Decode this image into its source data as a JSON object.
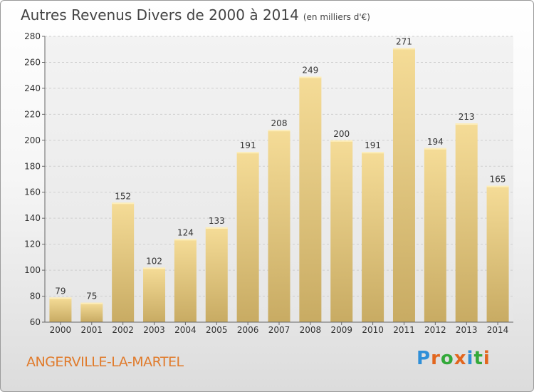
{
  "header": {
    "title": "Autres Revenus Divers de 2000 à 2014",
    "subtitle": "(en milliers d'€)"
  },
  "footer": {
    "place": "ANGERVILLE-LA-MARTEL",
    "brand": "Proxiti",
    "brand_letters": [
      "P",
      "r",
      "o",
      "x",
      "i",
      "t",
      "i"
    ],
    "brand_colors": [
      "#2f8fd8",
      "#e2661e",
      "#33a93a",
      "#e2661e",
      "#2f8fd8",
      "#33a93a",
      "#e2661e"
    ]
  },
  "chart_data": {
    "type": "bar",
    "title": "Autres Revenus Divers de 2000 à 2014",
    "subtitle": "(en milliers d'€)",
    "categories": [
      "2000",
      "2001",
      "2002",
      "2003",
      "2004",
      "2005",
      "2006",
      "2007",
      "2008",
      "2009",
      "2010",
      "2011",
      "2012",
      "2013",
      "2014"
    ],
    "values": [
      79,
      75,
      152,
      102,
      124,
      133,
      191,
      208,
      249,
      200,
      191,
      271,
      194,
      213,
      165
    ],
    "ylim": [
      60,
      280
    ],
    "yticks": [
      60,
      80,
      100,
      120,
      140,
      160,
      180,
      200,
      220,
      240,
      260,
      280
    ],
    "grid": true,
    "bar_color": "#f2d791"
  }
}
